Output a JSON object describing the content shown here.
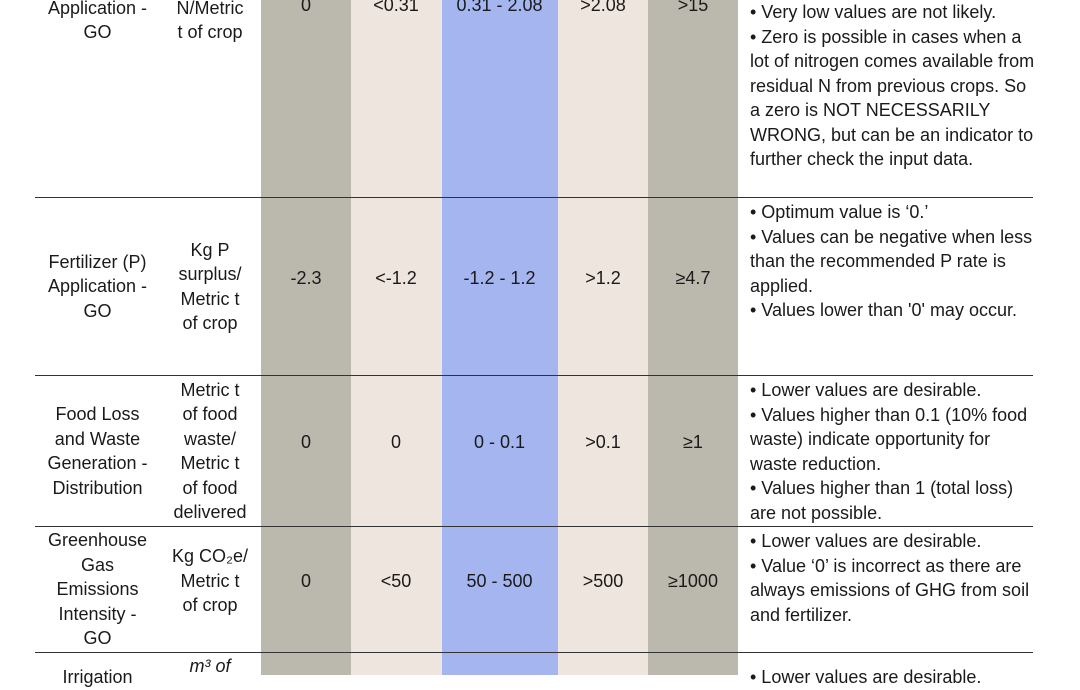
{
  "colors": {
    "gray_band": "#bbb8ae",
    "beige_band": "#ede5de",
    "blue_band": "#a5b5f0"
  },
  "rows": [
    {
      "name": "Application -\nGO",
      "unit": "N/Metric\nt of crop",
      "v1": "0",
      "v2": "<0.31",
      "v3": "0.31 - 2.08",
      "v4": ">2.08",
      "v5": ">15",
      "notes": [
        "• Very low values are not likely.",
        "• Zero is possible in cases when a lot of nitrogen comes available from residual N from previous crops. So a zero is NOT NECESSARILY WRONG, but can be an indicator to further check the input data."
      ]
    },
    {
      "name": "Fertilizer (P)\nApplication -\nGO",
      "unit": "Kg P\nsurplus/\nMetric t\nof crop",
      "v1": "-2.3",
      "v2": "<-1.2",
      "v3": "-1.2 - 1.2",
      "v4": ">1.2",
      "v5": "≥4.7",
      "notes": [
        "• Optimum value is ‘0.’",
        "• Values can be negative when less than the recommended P rate is applied.",
        "• Values lower than '0' may occur."
      ]
    },
    {
      "name": "Food Loss\nand Waste\nGeneration -\nDistribution",
      "unit": "Metric t\nof food\nwaste/\nMetric t\nof food\ndelivered",
      "v1": "0",
      "v2": "0",
      "v3": "0 - 0.1",
      "v4": ">0.1",
      "v5": "≥1",
      "notes": [
        "• Lower values are desirable.",
        "• Values higher than 0.1 (10% food waste) indicate opportunity for waste reduction.",
        "• Values higher than 1 (total loss) are not possible."
      ]
    },
    {
      "name": "Greenhouse\nGas\nEmissions\nIntensity -\nGO",
      "unit": "Kg CO₂e/\nMetric t\nof crop",
      "v1": "0",
      "v2": "<50",
      "v3": "50 - 500",
      "v4": ">500",
      "v5": "≥1000",
      "notes": [
        "• Lower values are desirable.",
        "• Value ‘0’ is incorrect as there are always emissions of GHG from soil and fertilizer."
      ]
    },
    {
      "name": "Irrigation",
      "unit": "m³ of",
      "notes": [
        "• Lower values are desirable."
      ]
    }
  ]
}
